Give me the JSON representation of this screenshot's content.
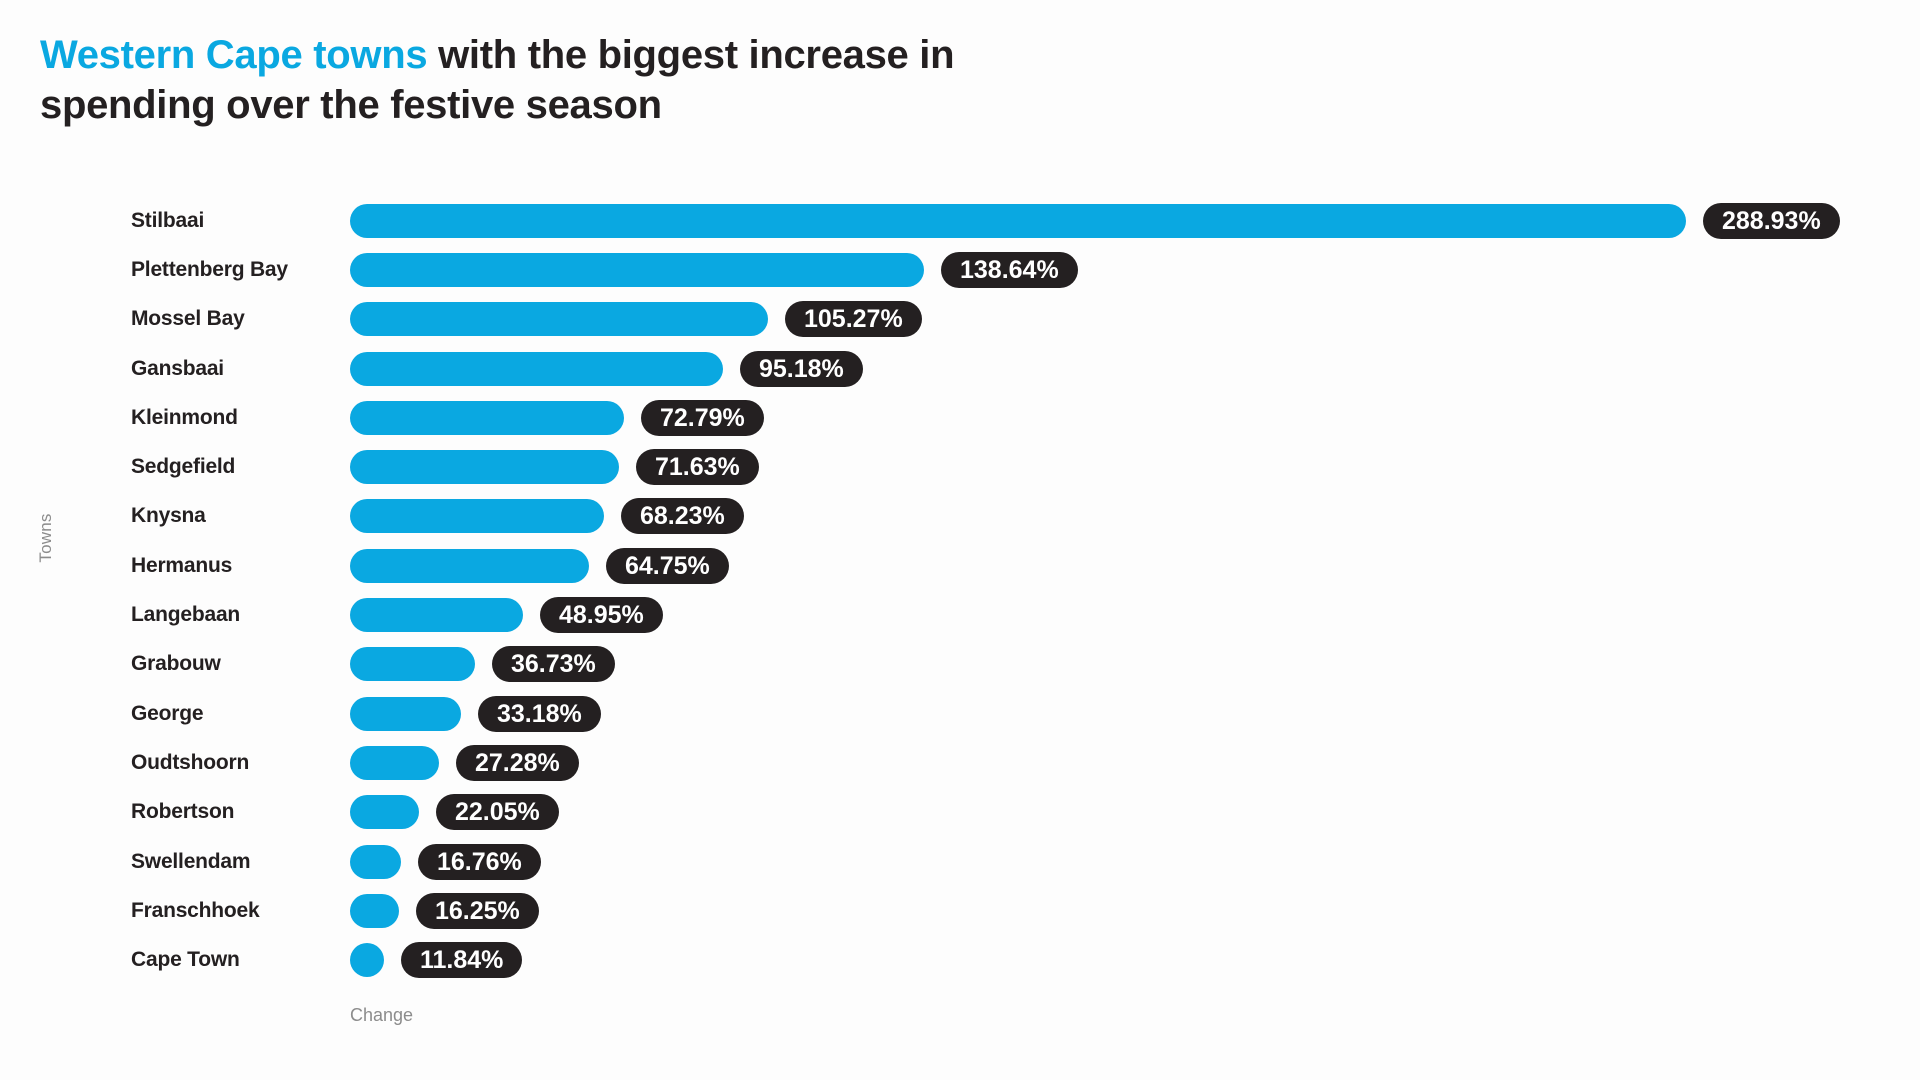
{
  "title": {
    "highlight": "Western Cape towns",
    "line1_rest": " with the biggest increase in",
    "line2": "spending over the festive season"
  },
  "colors": {
    "accent_blue": "#0aa8e1",
    "badge_background": "#242021",
    "text_dark": "#242021",
    "muted_gray": "#8c8c8c",
    "page_background": "#fdfdfd"
  },
  "chart_data": {
    "type": "bar",
    "orientation": "horizontal",
    "title": "Western Cape towns with the biggest increase in spending over the festive season",
    "xlabel": "Change",
    "ylabel": "Towns",
    "grid": false,
    "legend": false,
    "axis_ticks_visible": false,
    "categories": [
      "Stilbaai",
      "Plettenberg Bay",
      "Mossel Bay",
      "Gansbaai",
      "Kleinmond",
      "Sedgefield",
      "Knysna",
      "Hermanus",
      "Langebaan",
      "Grabouw",
      "George",
      "Oudtshoorn",
      "Robertson",
      "Swellendam",
      "Franschhoek",
      "Cape Town"
    ],
    "values": [
      288.93,
      138.64,
      105.27,
      95.18,
      72.79,
      71.63,
      68.23,
      64.75,
      48.95,
      36.73,
      33.18,
      27.28,
      22.05,
      16.76,
      16.25,
      11.84
    ],
    "value_labels": [
      "288.93%",
      "138.64%",
      "105.27%",
      "95.18%",
      "72.79%",
      "71.63%",
      "68.23%",
      "64.75%",
      "48.95%",
      "36.73%",
      "33.18%",
      "27.28%",
      "22.05%",
      "16.76%",
      "16.25%",
      "11.84%"
    ]
  }
}
